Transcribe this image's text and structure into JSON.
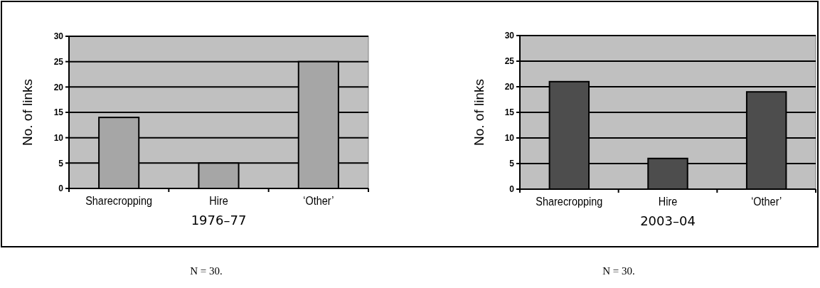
{
  "chart_data": [
    {
      "type": "bar",
      "xlabel": "1976–77",
      "ylabel": "No. of links",
      "categories": [
        "Sharecropping",
        "Hire",
        "‘Other’"
      ],
      "values": [
        14,
        5,
        25
      ],
      "color": "#a6a6a6",
      "ylim": [
        0,
        30
      ],
      "yticks": [
        0,
        5,
        10,
        15,
        20,
        25,
        30
      ],
      "grid": "y",
      "annotations": [
        "N = 30."
      ]
    },
    {
      "type": "bar",
      "xlabel": "2003–04",
      "ylabel": "No. of links",
      "categories": [
        "Sharecropping",
        "Hire",
        "‘Other’"
      ],
      "values": [
        21,
        6,
        19
      ],
      "color": "#4d4d4d",
      "ylim": [
        0,
        30
      ],
      "yticks": [
        0,
        5,
        10,
        15,
        20,
        25,
        30
      ],
      "grid": "y",
      "annotations": [
        "N = 30."
      ]
    }
  ]
}
